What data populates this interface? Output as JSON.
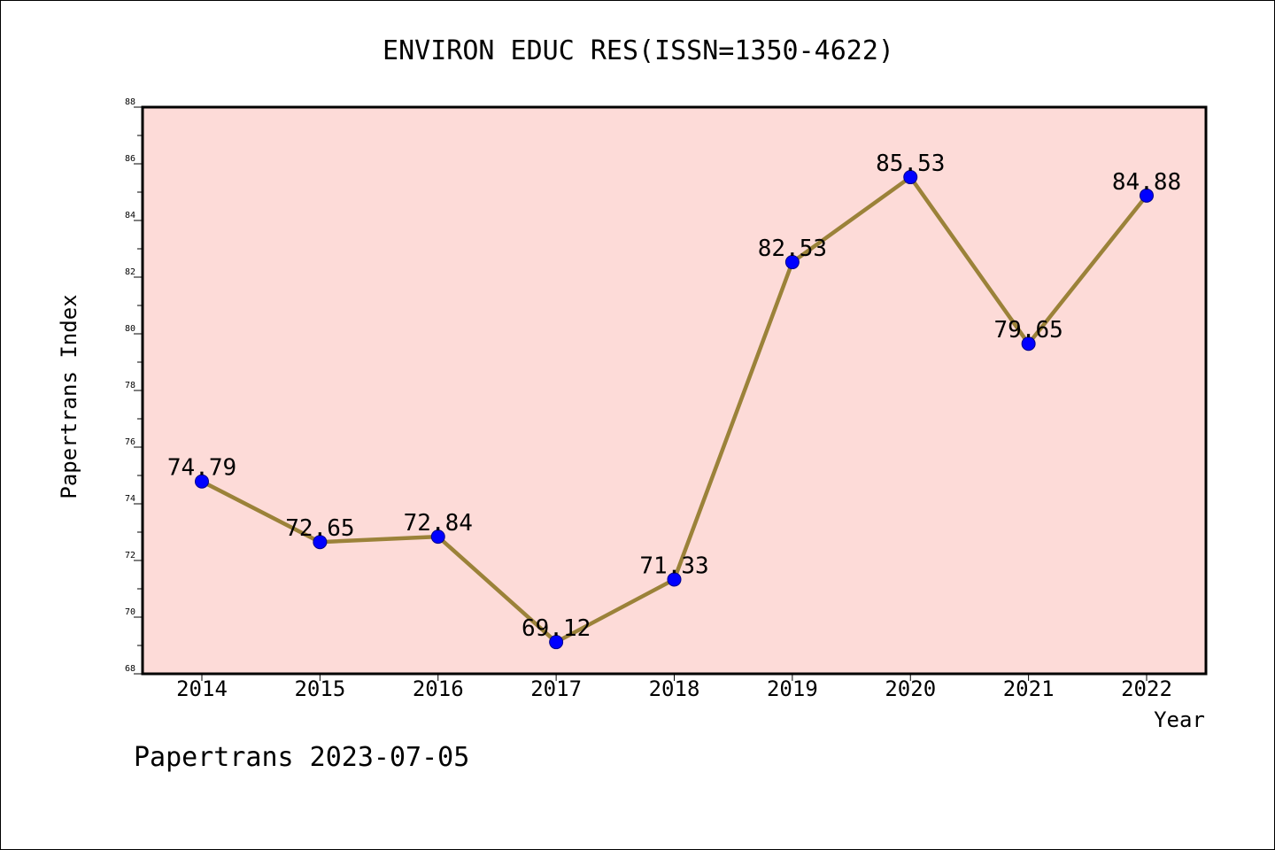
{
  "chart_data": {
    "type": "line",
    "title": "ENVIRON EDUC RES(ISSN=1350-4622)",
    "xlabel": "Year",
    "ylabel": "Papertrans Index",
    "categories": [
      "2014",
      "2015",
      "2016",
      "2017",
      "2018",
      "2019",
      "2020",
      "2021",
      "2022"
    ],
    "series": [
      {
        "values": [
          74.79,
          72.65,
          72.84,
          69.12,
          71.33,
          82.53,
          85.53,
          79.65,
          84.88
        ],
        "data_labels": [
          "74.79",
          "72.65",
          "72.84",
          "69.12",
          "71.33",
          "82.53",
          "85.53",
          "79.65",
          "84.88"
        ]
      }
    ],
    "ylim": [
      68,
      88
    ],
    "yticks": [
      "68",
      "70",
      "72",
      "74",
      "76",
      "78",
      "80",
      "82",
      "84",
      "86",
      "88"
    ],
    "grid": false,
    "legend": "none",
    "colors": {
      "plot_background": "#fddbd8",
      "line": "#9b8239",
      "marker": "#0000ff",
      "marker_edge": "#00008b"
    }
  },
  "footer": "Papertrans 2023-07-05"
}
